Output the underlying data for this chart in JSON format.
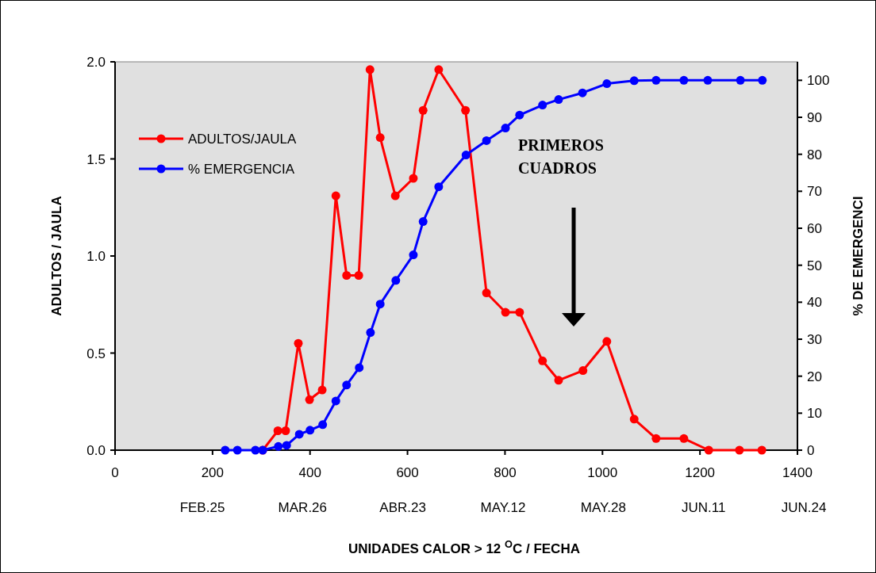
{
  "chart_data": {
    "type": "line",
    "xlabel": "UNIDADES CALOR > 12 $^{O}$C / FECHA",
    "ylabel": "ADULTOS / JAULA",
    "y2label": "% DE EMERGENCI",
    "xlim": [
      0,
      1400
    ],
    "xticks": [
      0,
      200,
      400,
      600,
      800,
      1000,
      1200,
      1400
    ],
    "ylim": [
      0,
      2.0
    ],
    "yticks": [
      {
        "value": 0,
        "label": "0.0"
      },
      {
        "value": 0.5,
        "label": "0.5"
      },
      {
        "value": 1,
        "label": "1.0"
      },
      {
        "value": 1.5,
        "label": "1.5"
      },
      {
        "value": 2,
        "label": "2.0"
      }
    ],
    "y2lim": [
      0,
      105
    ],
    "y2ticks": [
      0,
      10,
      20,
      30,
      40,
      50,
      60,
      70,
      80,
      90,
      100
    ],
    "legend": "top left",
    "marker": "circle",
    "grid": false,
    "series": [
      {
        "name": "ADULTOS/JAULA",
        "color": "#ff0000",
        "x": [
          303,
          334,
          350,
          376,
          399,
          425,
          453,
          475,
          500,
          523,
          544,
          575,
          612,
          632,
          664,
          719,
          762,
          801,
          830,
          877,
          910,
          960,
          1009,
          1065,
          1110,
          1167,
          1218,
          1281,
          1327
        ],
        "values": [
          0,
          0.1,
          0.1,
          0.55,
          0.26,
          0.31,
          1.31,
          0.9,
          0.9,
          1.96,
          1.61,
          1.31,
          1.4,
          1.75,
          1.96,
          1.75,
          0.81,
          0.71,
          0.71,
          0.46,
          0.36,
          0.41,
          0.56,
          0.16,
          0.06,
          0.06,
          0,
          0,
          0
        ]
      },
      {
        "name": "% EMERGENCIA",
        "color": "#0000ff",
        "axis": "y2",
        "x": [
          226,
          251,
          288,
          303,
          335,
          352,
          378,
          400,
          426,
          453,
          475,
          501,
          524,
          544,
          576,
          612,
          632,
          664,
          720,
          762,
          801,
          830,
          877,
          910,
          959,
          1009,
          1065,
          1110,
          1167,
          1216,
          1283,
          1328
        ],
        "values": [
          0,
          0,
          0,
          0,
          1,
          1.3,
          4.3,
          5.4,
          6.9,
          13.3,
          17.6,
          22.3,
          31.8,
          39.5,
          45.9,
          52.8,
          61.8,
          71.2,
          79.8,
          83.7,
          87.1,
          90.6,
          93.3,
          94.8,
          96.6,
          99.1,
          99.9,
          100,
          100,
          100,
          100,
          100
        ]
      }
    ],
    "annotations": [
      "FEB.25",
      "MAR.26",
      "ABR.23",
      "MAY.12",
      "MAY.28",
      "JUN.11",
      "JUN.24",
      "PRIMEROS CUADROS"
    ]
  }
}
